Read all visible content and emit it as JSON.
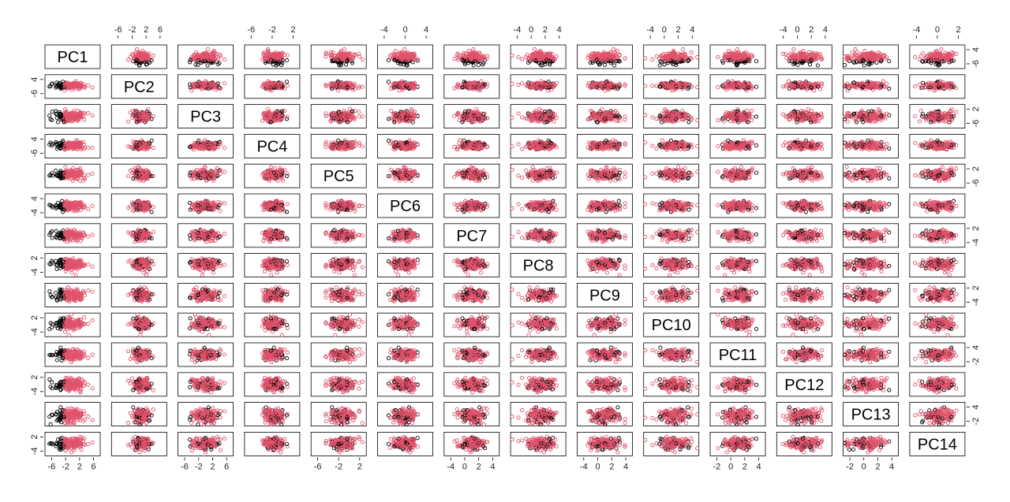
{
  "chart_data": {
    "type": "scatter",
    "title": "",
    "variables": [
      "PC1",
      "PC2",
      "PC3",
      "PC4",
      "PC5",
      "PC6",
      "PC7",
      "PC8",
      "PC9",
      "PC10",
      "PC11",
      "PC12",
      "PC13",
      "PC14"
    ],
    "groups": [
      {
        "color": "#000000"
      },
      {
        "color": "#df536b"
      }
    ],
    "ranges": [
      [
        -7,
        8
      ],
      [
        -8,
        7
      ],
      [
        -6,
        6
      ],
      [
        -8,
        7
      ],
      [
        -7,
        5
      ],
      [
        -6,
        6
      ],
      [
        -6,
        6
      ],
      [
        -6,
        5
      ],
      [
        -6,
        6
      ],
      [
        -6,
        5
      ],
      [
        -5,
        5
      ],
      [
        -5,
        5
      ],
      [
        -4,
        5
      ],
      [
        -5,
        5
      ]
    ],
    "top_ticks": {
      "1": [
        "-6",
        "-2",
        "2",
        "6"
      ],
      "3": [
        "-6",
        "-2",
        "2"
      ],
      "5": [
        "-4",
        "0",
        "4"
      ],
      "7": [
        "-4",
        "0",
        "2",
        "4"
      ],
      "9": [
        "-4",
        "0",
        "2",
        "4"
      ],
      "11": [
        "-4",
        "0",
        "2",
        "4"
      ],
      "13": [
        "-4",
        "0",
        "2"
      ]
    },
    "bottom_ticks": {
      "0": [
        "-6",
        "-2",
        "2",
        "6"
      ],
      "2": [
        "-6",
        "-2",
        "2",
        "6"
      ],
      "4": [
        "-6",
        "-2",
        "2"
      ],
      "6": [
        "-4",
        "0",
        "2",
        "4"
      ],
      "8": [
        "-4",
        "0",
        "2",
        "4"
      ],
      "10": [
        "-2",
        "0",
        "2",
        "4"
      ],
      "12": [
        "-2",
        "0",
        "2",
        "4"
      ]
    },
    "left_ticks": {
      "1": [
        "-6",
        "4"
      ],
      "3": [
        "-6",
        "4"
      ],
      "5": [
        "-4",
        "4"
      ],
      "7": [
        "-4",
        "2"
      ],
      "9": [
        "-4",
        "2"
      ],
      "11": [
        "-4",
        "2"
      ],
      "13": [
        "-4",
        "2"
      ]
    },
    "right_ticks": {
      "0": [
        "-6",
        "4"
      ],
      "2": [
        "-6",
        "2"
      ],
      "4": [
        "-6",
        "2"
      ],
      "6": [
        "-4",
        "2"
      ],
      "8": [
        "-4",
        "2"
      ],
      "10": [
        "-2",
        "4"
      ],
      "12": [
        "-2",
        "4"
      ]
    },
    "separation": "PC1 splits the two groups: black below about -2, red above",
    "grid": false,
    "legend": "none"
  }
}
